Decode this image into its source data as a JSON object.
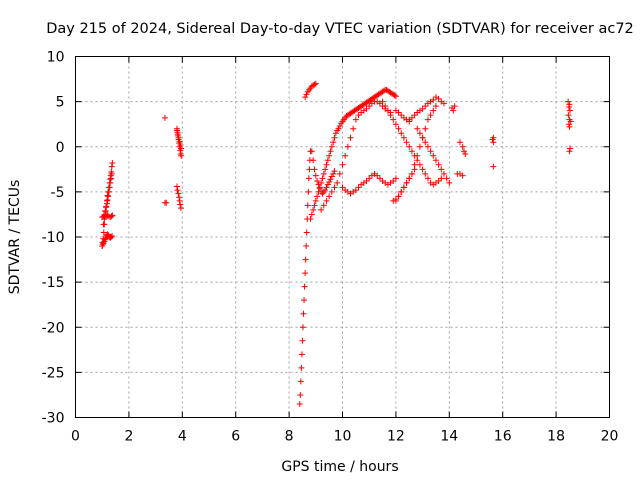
{
  "chart_data": {
    "type": "scatter",
    "title": "Day 215 of 2024, Sidereal Day-to-day VTEC variation (SDTVAR) for receiver ac72",
    "xlabel": "GPS time / hours",
    "ylabel": "SDTVAR / TECUs",
    "xlim": [
      0,
      20
    ],
    "ylim": [
      -30,
      10
    ],
    "xticks": [
      "0",
      "2",
      "4",
      "6",
      "8",
      "10",
      "12",
      "14",
      "16",
      "18",
      "20"
    ],
    "yticks": [
      "10",
      "5",
      "0",
      "-5",
      "-10",
      "-15",
      "-20",
      "-25",
      "-30"
    ],
    "grid": true,
    "marker": "+",
    "color": "#ff0000",
    "series": [
      {
        "name": "SDTVAR",
        "x": [
          1.0,
          1.02,
          1.04,
          1.06,
          1.08,
          1.1,
          1.12,
          1.15,
          1.18,
          1.2,
          1.22,
          1.25,
          1.28,
          1.3,
          1.32,
          1.34,
          1.36,
          1.38,
          1.05,
          1.08,
          1.1,
          1.12,
          1.15,
          1.18,
          1.2,
          1.22,
          1.25,
          1.28,
          1.3,
          1.33,
          1.36,
          1.0,
          1.05,
          1.1,
          1.15,
          1.2,
          1.25,
          1.3,
          1.35,
          1.38,
          1.0,
          1.02,
          1.05,
          1.08,
          1.1,
          1.12,
          1.15,
          1.18,
          1.2,
          1.23,
          1.26,
          1.3,
          1.33,
          1.37,
          3.35,
          3.35,
          3.4,
          3.8,
          3.82,
          3.84,
          3.86,
          3.88,
          3.9,
          3.92,
          3.94,
          3.96,
          3.8,
          3.82,
          3.85,
          3.88,
          3.9,
          3.92,
          3.95,
          3.8,
          3.83,
          3.86,
          3.9,
          3.93,
          3.95,
          8.4,
          8.42,
          8.44,
          8.46,
          8.48,
          8.5,
          8.52,
          8.54,
          8.56,
          8.58,
          8.6,
          8.62,
          8.64,
          8.66,
          8.68,
          8.7,
          8.72,
          8.74,
          8.76,
          8.78,
          8.8,
          8.85,
          8.9,
          8.95,
          9.0,
          9.05,
          9.1,
          9.15,
          9.2,
          9.25,
          9.3,
          9.35,
          9.4,
          9.45,
          9.5,
          9.55,
          9.6,
          9.65,
          9.7,
          8.6,
          8.65,
          8.7,
          8.75,
          8.8,
          8.85,
          8.9,
          8.95,
          9.0,
          8.8,
          8.85,
          8.9,
          8.95,
          9.0,
          9.05,
          9.1,
          9.15,
          9.2,
          9.25,
          9.3,
          9.35,
          9.4,
          9.45,
          9.5,
          9.55,
          9.6,
          9.65,
          9.7,
          9.75,
          9.8,
          9.85,
          9.9,
          9.95,
          10.0,
          10.05,
          10.1,
          10.15,
          10.2,
          10.25,
          10.3,
          10.35,
          10.4,
          10.45,
          10.5,
          10.55,
          10.6,
          10.65,
          10.7,
          10.75,
          10.8,
          10.85,
          10.9,
          10.95,
          11.0,
          11.05,
          11.1,
          11.15,
          11.2,
          11.25,
          11.3,
          11.35,
          11.4,
          11.45,
          11.5,
          11.55,
          11.6,
          11.65,
          11.7,
          11.75,
          11.8,
          11.85,
          11.9,
          11.95,
          12.0,
          9.2,
          9.3,
          9.4,
          9.5,
          9.6,
          9.7,
          9.8,
          9.9,
          10.0,
          10.1,
          10.2,
          10.3,
          10.4,
          10.5,
          10.6,
          10.7,
          10.8,
          10.9,
          11.0,
          11.1,
          11.2,
          11.3,
          11.4,
          11.5,
          11.6,
          11.7,
          11.8,
          10.0,
          10.1,
          10.2,
          10.3,
          10.4,
          10.5,
          10.6,
          10.7,
          10.8,
          10.9,
          11.0,
          11.1,
          11.2,
          11.3,
          11.4,
          11.5,
          11.6,
          11.7,
          11.8,
          11.9,
          12.0,
          11.5,
          11.6,
          11.7,
          11.8,
          11.9,
          12.0,
          12.1,
          12.2,
          12.3,
          12.4,
          12.5,
          12.6,
          12.7,
          12.8,
          12.9,
          13.0,
          13.1,
          13.2,
          13.3,
          13.4,
          13.5,
          13.6,
          13.7,
          12.0,
          12.1,
          12.2,
          12.3,
          12.4,
          12.5,
          12.6,
          12.7,
          12.8,
          12.9,
          13.0,
          13.1,
          13.2,
          13.3,
          13.4,
          13.5,
          12.5,
          12.6,
          12.7,
          12.8,
          12.9,
          13.0,
          13.1,
          13.2,
          13.3,
          13.4,
          13.5,
          13.6,
          13.7,
          13.8,
          12.8,
          12.9,
          13.0,
          13.1,
          13.2,
          13.3,
          13.4,
          13.5,
          13.6,
          13.7,
          13.8,
          13.9,
          14.0,
          11.9,
          12.0,
          12.1,
          12.2,
          12.3,
          12.4,
          12.5,
          12.6,
          12.7,
          12.0,
          12.1,
          12.2,
          12.3,
          12.4,
          12.5,
          14.1,
          14.2,
          14.15,
          14.4,
          14.5,
          14.55,
          14.6,
          14.3,
          14.4,
          14.5,
          15.65,
          15.65,
          15.65,
          15.62,
          18.45,
          18.5,
          18.48,
          18.52,
          18.46,
          18.5,
          18.55,
          18.48,
          18.5,
          18.52,
          18.5
        ],
        "y": [
          -11.0,
          -10.6,
          -10.2,
          -9.5,
          -8.6,
          -7.8,
          -7.2,
          -6.6,
          -6.0,
          -5.4,
          -5.0,
          -4.5,
          -4.0,
          -3.6,
          -3.2,
          -2.8,
          -2.2,
          -1.8,
          -8.6,
          -8.0,
          -7.5,
          -7.1,
          -6.7,
          -6.3,
          -5.9,
          -5.5,
          -5.0,
          -4.5,
          -4.0,
          -3.5,
          -3.0,
          -7.8,
          -7.7,
          -7.6,
          -7.6,
          -7.6,
          -7.7,
          -7.8,
          -7.7,
          -7.6,
          -11.0,
          -10.8,
          -10.7,
          -10.5,
          -10.3,
          -10.2,
          -10.0,
          -9.8,
          -9.7,
          -9.8,
          -10.0,
          -10.1,
          -10.0,
          -9.9,
          3.2,
          -6.2,
          -6.2,
          2.0,
          1.6,
          1.2,
          0.8,
          0.4,
          0.0,
          -0.4,
          -0.8,
          -1.0,
          -4.4,
          -4.8,
          -5.2,
          -5.6,
          -6.0,
          -6.4,
          -6.8,
          1.8,
          1.4,
          1.0,
          0.6,
          0.2,
          -0.2,
          -28.5,
          -27.5,
          -26.0,
          -24.5,
          -23.0,
          -21.5,
          -20.0,
          -18.5,
          -17.0,
          -15.5,
          -14.0,
          -12.5,
          -11.0,
          -9.5,
          -8.0,
          -6.5,
          -5.0,
          -3.5,
          -2.5,
          -1.5,
          -0.5,
          -0.5,
          -1.5,
          -2.5,
          -3.2,
          -3.8,
          -4.2,
          -4.6,
          -5.0,
          -5.2,
          -5.0,
          -4.8,
          -4.5,
          -4.2,
          -3.9,
          -3.6,
          -3.3,
          -3.0,
          -2.7,
          5.5,
          5.8,
          6.1,
          6.3,
          6.5,
          6.7,
          6.8,
          6.9,
          7.0,
          -8.0,
          -7.5,
          -7.0,
          -6.5,
          -6.0,
          -5.5,
          -5.0,
          -4.5,
          -4.0,
          -3.5,
          -3.0,
          -2.5,
          -2.0,
          -1.5,
          -1.0,
          -0.5,
          0.0,
          0.5,
          1.0,
          1.5,
          1.8,
          2.0,
          2.3,
          2.6,
          2.8,
          3.0,
          3.2,
          3.4,
          3.5,
          3.6,
          3.7,
          3.8,
          3.9,
          4.0,
          4.1,
          4.2,
          4.3,
          4.4,
          4.5,
          4.6,
          4.7,
          4.8,
          4.9,
          5.0,
          5.1,
          5.2,
          5.3,
          5.4,
          5.5,
          5.6,
          5.7,
          5.8,
          5.9,
          6.0,
          6.1,
          6.2,
          6.3,
          6.3,
          6.2,
          6.1,
          6.0,
          5.9,
          5.8,
          5.7,
          5.6,
          -7.0,
          -6.5,
          -6.0,
          -5.5,
          -5.0,
          -4.5,
          -4.0,
          -3.0,
          -2.0,
          -1.0,
          0.0,
          1.0,
          2.0,
          3.0,
          3.5,
          3.8,
          4.0,
          4.2,
          4.5,
          4.8,
          5.0,
          5.0,
          4.8,
          4.5,
          4.2,
          4.0,
          3.8,
          -4.5,
          -4.8,
          -5.0,
          -5.2,
          -5.0,
          -4.8,
          -4.5,
          -4.2,
          -4.0,
          -3.8,
          -3.5,
          -3.2,
          -3.0,
          -3.2,
          -3.5,
          -3.8,
          -4.0,
          -4.2,
          -4.0,
          -3.8,
          -3.5,
          5.0,
          4.5,
          4.0,
          3.5,
          3.0,
          2.5,
          2.0,
          1.5,
          1.0,
          0.5,
          0.0,
          -0.5,
          -1.0,
          -1.5,
          -2.0,
          -2.5,
          -3.0,
          -3.5,
          -4.0,
          -4.2,
          -4.0,
          -3.8,
          -3.5,
          -6.0,
          -5.5,
          -5.0,
          -4.5,
          -4.0,
          -3.5,
          -3.0,
          -2.0,
          -1.0,
          0.0,
          1.0,
          2.0,
          3.0,
          3.5,
          4.0,
          4.5,
          3.0,
          3.2,
          3.5,
          3.8,
          4.0,
          4.2,
          4.5,
          4.8,
          5.0,
          5.2,
          5.5,
          5.3,
          5.0,
          4.8,
          2.0,
          1.5,
          1.0,
          0.5,
          0.0,
          -0.5,
          -1.0,
          -1.5,
          -2.0,
          -2.5,
          -3.0,
          -3.5,
          -4.0,
          -6.0,
          -5.8,
          -5.5,
          -5.0,
          -4.5,
          -4.0,
          -3.5,
          -3.0,
          -2.5,
          4.0,
          3.8,
          3.5,
          3.2,
          3.0,
          2.8,
          4.3,
          4.5,
          4.0,
          0.5,
          0.0,
          -0.5,
          -0.8,
          -3.0,
          -3.0,
          -3.2,
          1.0,
          0.5,
          -2.2,
          0.8,
          5.0,
          4.7,
          4.4,
          4.0,
          3.5,
          3.0,
          2.8,
          2.5,
          2.2,
          -0.2,
          -0.5
        ]
      }
    ]
  }
}
